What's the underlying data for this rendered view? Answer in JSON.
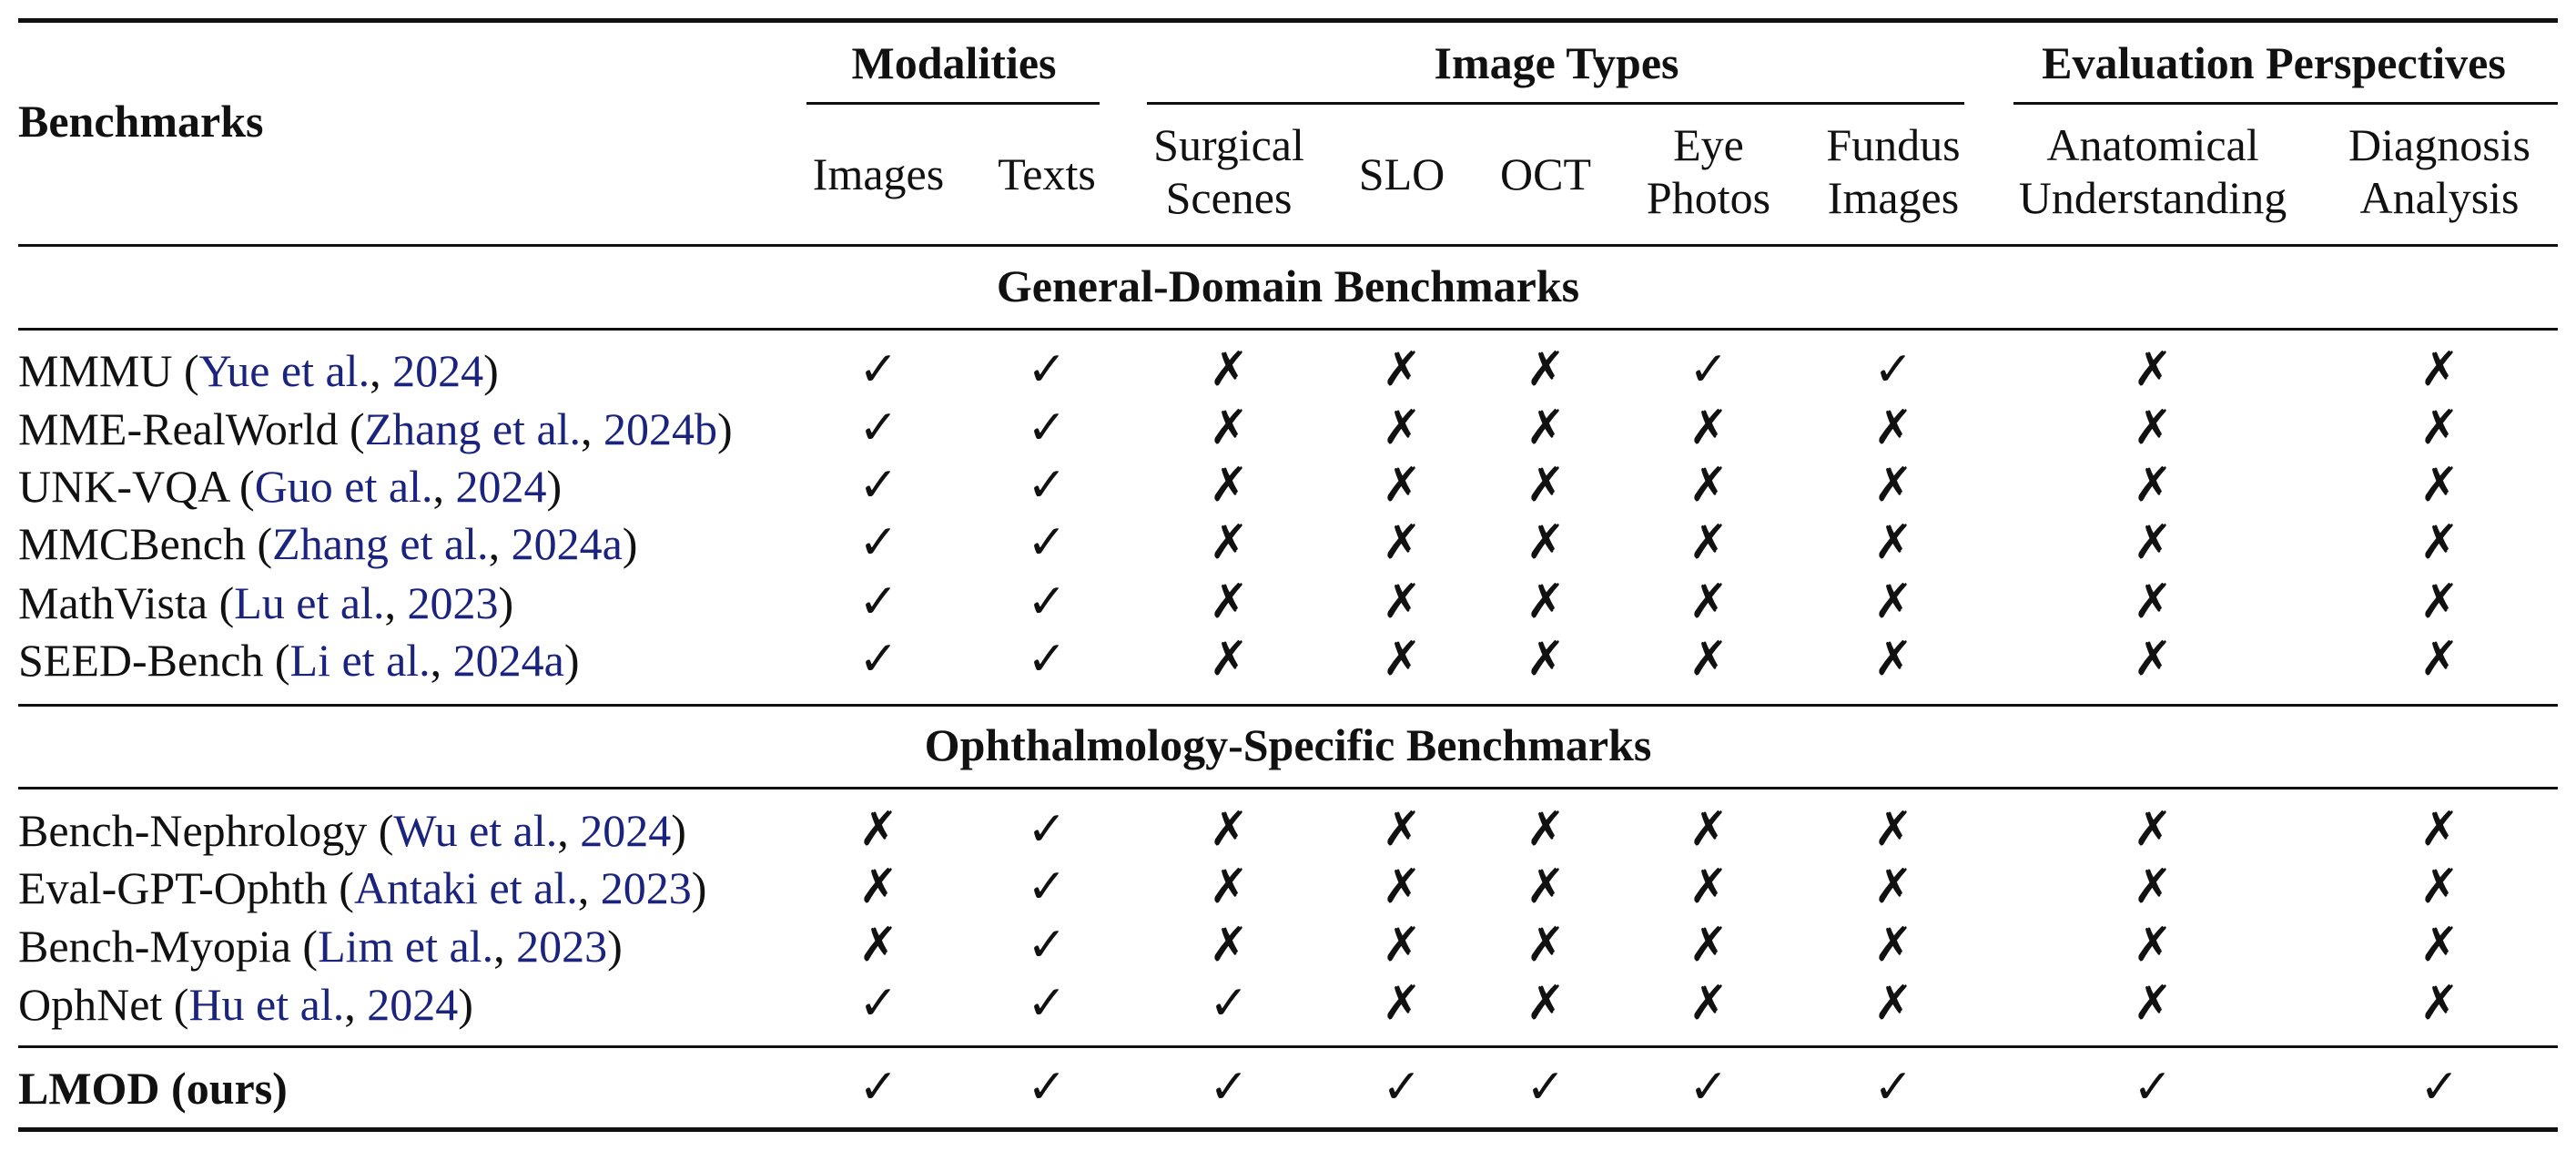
{
  "header": {
    "benchmarks_label": "Benchmarks",
    "groups": [
      {
        "label": "Modalities"
      },
      {
        "label": "Image Types"
      },
      {
        "label": "Evaluation Perspectives"
      }
    ],
    "columns": [
      {
        "line1": "Images",
        "line2": ""
      },
      {
        "line1": "Texts",
        "line2": ""
      },
      {
        "line1": "Surgical",
        "line2": "Scenes"
      },
      {
        "line1": "SLO",
        "line2": ""
      },
      {
        "line1": "OCT",
        "line2": ""
      },
      {
        "line1": "Eye",
        "line2": "Photos"
      },
      {
        "line1": "Fundus",
        "line2": "Images"
      },
      {
        "line1": "Anatomical",
        "line2": "Understanding"
      },
      {
        "line1": "Diagnosis",
        "line2": "Analysis"
      }
    ]
  },
  "symbols": {
    "yes": "✓",
    "no": "✗"
  },
  "sections": [
    {
      "title": "General-Domain Benchmarks",
      "rows": [
        {
          "name": "MMMU (",
          "cite_authors": "Yue et al.",
          "cite_sep": ", ",
          "cite_year": "2024",
          "close": ")",
          "values": [
            "✓",
            "✓",
            "✗",
            "✗",
            "✗",
            "✓",
            "✓",
            "✗",
            "✗"
          ]
        },
        {
          "name": "MME-RealWorld (",
          "cite_authors": "Zhang et al.",
          "cite_sep": ", ",
          "cite_year": "2024b",
          "close": ")",
          "values": [
            "✓",
            "✓",
            "✗",
            "✗",
            "✗",
            "✗",
            "✗",
            "✗",
            "✗"
          ]
        },
        {
          "name": "UNK-VQA (",
          "cite_authors": "Guo et al.",
          "cite_sep": ", ",
          "cite_year": "2024",
          "close": ")",
          "values": [
            "✓",
            "✓",
            "✗",
            "✗",
            "✗",
            "✗",
            "✗",
            "✗",
            "✗"
          ]
        },
        {
          "name": "MMCBench (",
          "cite_authors": "Zhang et al.",
          "cite_sep": ", ",
          "cite_year": "2024a",
          "close": ")",
          "values": [
            "✓",
            "✓",
            "✗",
            "✗",
            "✗",
            "✗",
            "✗",
            "✗",
            "✗"
          ]
        },
        {
          "name": "MathVista (",
          "cite_authors": "Lu et al.",
          "cite_sep": ", ",
          "cite_year": "2023",
          "close": ")",
          "values": [
            "✓",
            "✓",
            "✗",
            "✗",
            "✗",
            "✗",
            "✗",
            "✗",
            "✗"
          ]
        },
        {
          "name": "SEED-Bench (",
          "cite_authors": "Li et al.",
          "cite_sep": ", ",
          "cite_year": "2024a",
          "close": ")",
          "values": [
            "✓",
            "✓",
            "✗",
            "✗",
            "✗",
            "✗",
            "✗",
            "✗",
            "✗"
          ]
        }
      ]
    },
    {
      "title": "Ophthalmology-Specific Benchmarks",
      "rows": [
        {
          "name": "Bench-Nephrology (",
          "cite_authors": "Wu et al.",
          "cite_sep": ", ",
          "cite_year": "2024",
          "close": ")",
          "values": [
            "✗",
            "✓",
            "✗",
            "✗",
            "✗",
            "✗",
            "✗",
            "✗",
            "✗"
          ]
        },
        {
          "name": "Eval-GPT-Ophth (",
          "cite_authors": "Antaki et al.",
          "cite_sep": ", ",
          "cite_year": "2023",
          "close": ")",
          "values": [
            "✗",
            "✓",
            "✗",
            "✗",
            "✗",
            "✗",
            "✗",
            "✗",
            "✗"
          ]
        },
        {
          "name": "Bench-Myopia (",
          "cite_authors": "Lim et al.",
          "cite_sep": ", ",
          "cite_year": "2023",
          "close": ")",
          "values": [
            "✗",
            "✓",
            "✗",
            "✗",
            "✗",
            "✗",
            "✗",
            "✗",
            "✗"
          ]
        },
        {
          "name": "OphNet (",
          "cite_authors": "Hu et al.",
          "cite_sep": ", ",
          "cite_year": "2024",
          "close": ")",
          "values": [
            "✓",
            "✓",
            "✓",
            "✗",
            "✗",
            "✗",
            "✗",
            "✗",
            "✗"
          ]
        }
      ]
    }
  ],
  "final_row": {
    "name": "LMOD (ours)",
    "values": [
      "✓",
      "✓",
      "✓",
      "✓",
      "✓",
      "✓",
      "✓",
      "✓",
      "✓"
    ]
  },
  "colors": {
    "citation": "#1a237e",
    "text": "#111111",
    "rule": "#111111"
  }
}
